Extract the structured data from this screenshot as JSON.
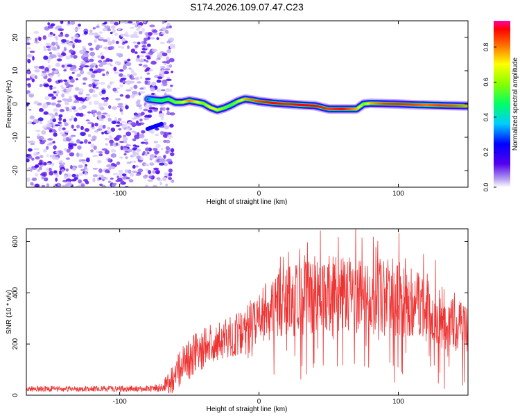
{
  "title": "S174.2026.109.07.47.C23",
  "chart_data": [
    {
      "type": "heatmap",
      "id": "spectrogram",
      "xlabel": "Height of straight line (km)",
      "ylabel": "Frequency (Hz)",
      "xlim": [
        -167,
        150
      ],
      "ylim": [
        -25,
        25
      ],
      "xticks": [
        -100,
        0,
        100
      ],
      "yticks": [
        -20,
        -10,
        0,
        10,
        20
      ],
      "colorbar": {
        "label": "Normalized spectral amplitude",
        "range": [
          0,
          0.95
        ],
        "ticks": [
          0.0,
          0.2,
          0.4,
          0.6,
          0.8
        ],
        "tick_labels": [
          "0.0",
          "0.2",
          "0.4",
          "0.6",
          "0.8"
        ]
      },
      "noise_region": {
        "x": [
          -167,
          -67
        ],
        "frequency": [
          -25,
          25
        ],
        "amplitude": [
          0.02,
          0.2
        ]
      },
      "ridge": {
        "x": [
          -80,
          -75,
          -70,
          -65,
          -60,
          -55,
          -50,
          -45,
          -40,
          -35,
          -30,
          -25,
          -20,
          -15,
          -10,
          -5,
          0,
          10,
          20,
          30,
          40,
          50,
          60,
          70,
          75,
          80,
          90,
          100,
          110,
          120,
          130,
          140,
          150
        ],
        "frequency": [
          1.5,
          1.2,
          1.0,
          1.5,
          0.5,
          0.5,
          1.0,
          0.6,
          0.2,
          -1.0,
          -1.8,
          -1.2,
          -0.3,
          0.8,
          1.5,
          1.2,
          0.8,
          0.3,
          0.0,
          -0.3,
          -0.5,
          -1.5,
          -1.5,
          -1.5,
          0.0,
          0.2,
          0.1,
          0.0,
          -0.2,
          -0.3,
          -0.4,
          -0.5,
          -0.6
        ],
        "amplitude": [
          0.3,
          0.45,
          0.5,
          0.55,
          0.6,
          0.7,
          0.85,
          0.75,
          0.6,
          0.75,
          0.7,
          0.6,
          0.55,
          0.65,
          0.8,
          0.85,
          0.9,
          0.95,
          0.92,
          0.95,
          0.95,
          0.9,
          0.95,
          0.8,
          0.6,
          0.8,
          0.9,
          0.92,
          0.9,
          0.85,
          0.9,
          0.88,
          0.8
        ]
      },
      "secondary_trace": {
        "x": [
          -80,
          -70
        ],
        "frequency": [
          -7.5,
          -6.0
        ],
        "amplitude": 0.25
      }
    },
    {
      "type": "line",
      "id": "snr",
      "xlabel": "Height of straight line (km)",
      "ylabel": "SNR (10 * v/v)",
      "xlim": [
        -167,
        150
      ],
      "ylim": [
        0,
        650
      ],
      "xticks": [
        -100,
        0,
        100
      ],
      "yticks": [
        0,
        200,
        400,
        600
      ],
      "color": "#ee3333",
      "envelope": {
        "x": [
          -167,
          -150,
          -120,
          -100,
          -80,
          -70,
          -62,
          -55,
          -45,
          -35,
          -25,
          -15,
          -5,
          5,
          20,
          40,
          60,
          80,
          100,
          110,
          120,
          130,
          140,
          150
        ],
        "mean": [
          25,
          25,
          25,
          25,
          25,
          30,
          60,
          130,
          160,
          200,
          220,
          240,
          280,
          320,
          360,
          390,
          400,
          390,
          380,
          370,
          350,
          310,
          280,
          250
        ],
        "spread": [
          8,
          8,
          8,
          8,
          9,
          12,
          40,
          60,
          60,
          55,
          55,
          60,
          70,
          85,
          100,
          110,
          110,
          110,
          110,
          100,
          100,
          90,
          80,
          70
        ]
      }
    }
  ]
}
